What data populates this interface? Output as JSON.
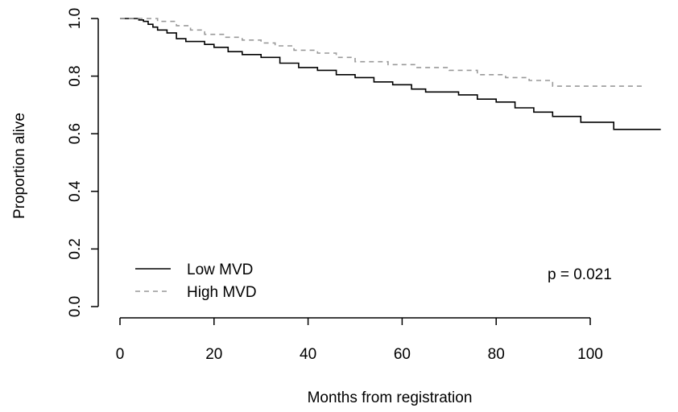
{
  "chart_data": {
    "type": "line",
    "title": "",
    "xlabel": "Months from registration",
    "ylabel": "Proportion alive",
    "xlim": [
      0,
      115
    ],
    "ylim": [
      0,
      1.0
    ],
    "x_ticks": [
      0,
      20,
      40,
      60,
      80,
      100
    ],
    "y_ticks": [
      0.0,
      0.2,
      0.4,
      0.6,
      0.8,
      1.0
    ],
    "x_tick_labels": [
      "0",
      "20",
      "40",
      "60",
      "80",
      "100"
    ],
    "y_tick_labels": [
      "0.0",
      "0.2",
      "0.4",
      "0.6",
      "0.8",
      "1.0"
    ],
    "grid": false,
    "legend_position": "bottom-left",
    "annotation": "p = 0.021",
    "series": [
      {
        "name": "Low MVD",
        "color": "#000000",
        "dash": "solid",
        "step": true,
        "points": [
          [
            0,
            1.0
          ],
          [
            4,
            0.995
          ],
          [
            5,
            0.99
          ],
          [
            6,
            0.98
          ],
          [
            7,
            0.97
          ],
          [
            8,
            0.96
          ],
          [
            10,
            0.95
          ],
          [
            12,
            0.93
          ],
          [
            14,
            0.92
          ],
          [
            18,
            0.91
          ],
          [
            20,
            0.9
          ],
          [
            23,
            0.885
          ],
          [
            26,
            0.875
          ],
          [
            30,
            0.865
          ],
          [
            34,
            0.845
          ],
          [
            38,
            0.83
          ],
          [
            42,
            0.82
          ],
          [
            46,
            0.805
          ],
          [
            50,
            0.795
          ],
          [
            54,
            0.78
          ],
          [
            58,
            0.77
          ],
          [
            62,
            0.755
          ],
          [
            65,
            0.745
          ],
          [
            72,
            0.735
          ],
          [
            76,
            0.72
          ],
          [
            80,
            0.71
          ],
          [
            84,
            0.69
          ],
          [
            88,
            0.675
          ],
          [
            92,
            0.66
          ],
          [
            98,
            0.64
          ],
          [
            105,
            0.615
          ],
          [
            115,
            0.615
          ]
        ]
      },
      {
        "name": "High MVD",
        "color": "#999999",
        "dash": "dashed",
        "step": true,
        "points": [
          [
            0,
            1.0
          ],
          [
            8,
            0.99
          ],
          [
            12,
            0.975
          ],
          [
            15,
            0.96
          ],
          [
            18,
            0.945
          ],
          [
            22,
            0.935
          ],
          [
            26,
            0.925
          ],
          [
            30,
            0.915
          ],
          [
            33,
            0.905
          ],
          [
            37,
            0.89
          ],
          [
            42,
            0.88
          ],
          [
            46,
            0.865
          ],
          [
            50,
            0.85
          ],
          [
            57,
            0.84
          ],
          [
            63,
            0.83
          ],
          [
            70,
            0.82
          ],
          [
            76,
            0.805
          ],
          [
            82,
            0.795
          ],
          [
            87,
            0.785
          ],
          [
            92,
            0.765
          ],
          [
            111,
            0.765
          ]
        ]
      }
    ]
  }
}
